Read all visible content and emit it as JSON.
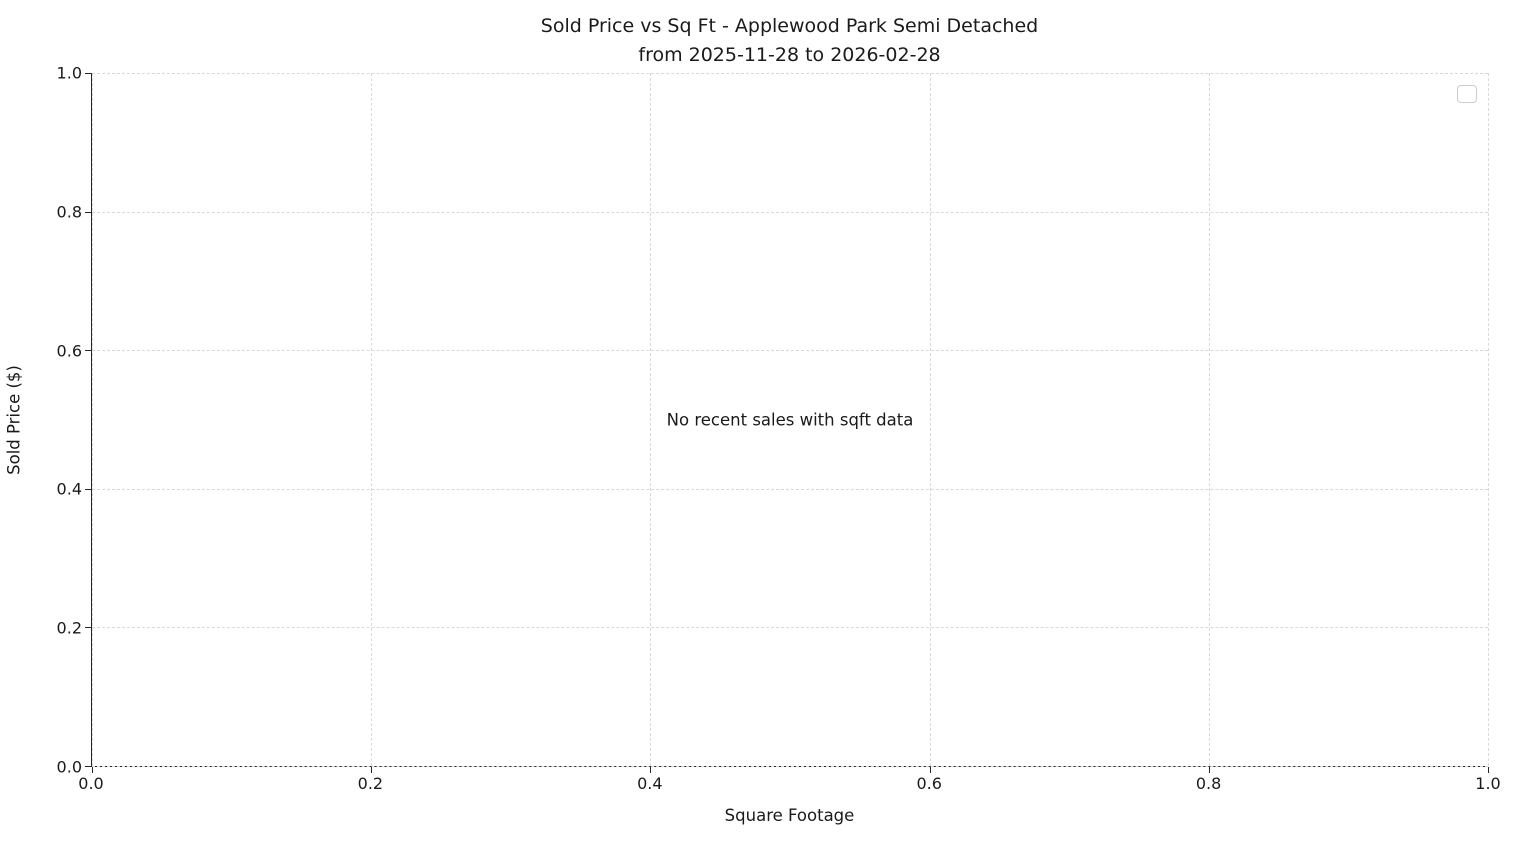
{
  "chart_data": {
    "type": "scatter",
    "title": "Sold Price vs Sq Ft - Applewood Park Semi Detached",
    "subtitle": "from 2025-11-28 to 2026-02-28",
    "xlabel": "Square Footage",
    "ylabel": "Sold Price ($)",
    "xlim": [
      0.0,
      1.0
    ],
    "ylim": [
      0.0,
      1.0
    ],
    "xticks": [
      0.0,
      0.2,
      0.4,
      0.6,
      0.8,
      1.0
    ],
    "xtick_labels": [
      "0.0",
      "0.2",
      "0.4",
      "0.6",
      "0.8",
      "1.0"
    ],
    "yticks": [
      0.0,
      0.2,
      0.4,
      0.6,
      0.8,
      1.0
    ],
    "ytick_labels": [
      "0.0",
      "0.2",
      "0.4",
      "0.6",
      "0.8",
      "1.0"
    ],
    "grid": true,
    "grid_style": "dashed",
    "legend_position": "upper right",
    "legend_entries": [],
    "series": [],
    "annotation": "No recent sales with sqft data"
  },
  "colors": {
    "background": "#ffffff",
    "grid": "#d9d9d9",
    "spine": "#262626",
    "text": "#1a1a1a",
    "legend_border": "#cccccc"
  }
}
